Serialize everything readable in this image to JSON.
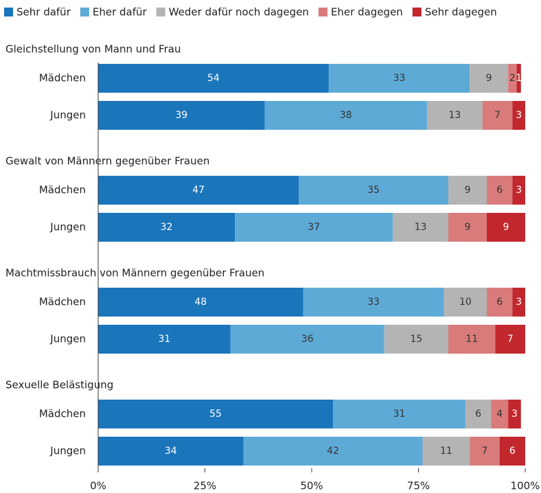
{
  "chart_data": {
    "type": "stacked-bar-horizontal",
    "group_titles": [
      "Gleichstellung von Mann und Frau",
      "Gewalt von Männern gegenüber Frauen",
      "Machtmissbrauch von Männern gegenüber Frauen",
      "Sexuelle Belästigung"
    ],
    "categories": [
      "Mädchen",
      "Jungen",
      "Mädchen",
      "Jungen",
      "Mädchen",
      "Jungen",
      "Mädchen",
      "Jungen"
    ],
    "series": [
      {
        "name": "Sehr dafür",
        "color": "#1b75bb",
        "values": [
          54,
          39,
          47,
          32,
          48,
          31,
          55,
          34
        ]
      },
      {
        "name": "Eher dafür",
        "color": "#5eaad6",
        "values": [
          33,
          38,
          35,
          37,
          33,
          36,
          31,
          42
        ]
      },
      {
        "name": "Weder dafür noch dagegen",
        "color": "#b4b4b4",
        "values": [
          9,
          13,
          9,
          13,
          10,
          15,
          6,
          11
        ]
      },
      {
        "name": "Eher dagegen",
        "color": "#d97b7b",
        "values": [
          2,
          7,
          6,
          9,
          6,
          11,
          4,
          7
        ]
      },
      {
        "name": "Sehr dagegen",
        "color": "#c1272d",
        "values": [
          1,
          3,
          3,
          9,
          3,
          7,
          3,
          6
        ]
      }
    ],
    "xlim": [
      0,
      100
    ],
    "xticks": [
      {
        "value": 0,
        "label": "0%"
      },
      {
        "value": 25,
        "label": "25%"
      },
      {
        "value": 50,
        "label": "50%"
      },
      {
        "value": 75,
        "label": "75%"
      },
      {
        "value": 100,
        "label": "100%"
      }
    ],
    "legend": "top"
  }
}
